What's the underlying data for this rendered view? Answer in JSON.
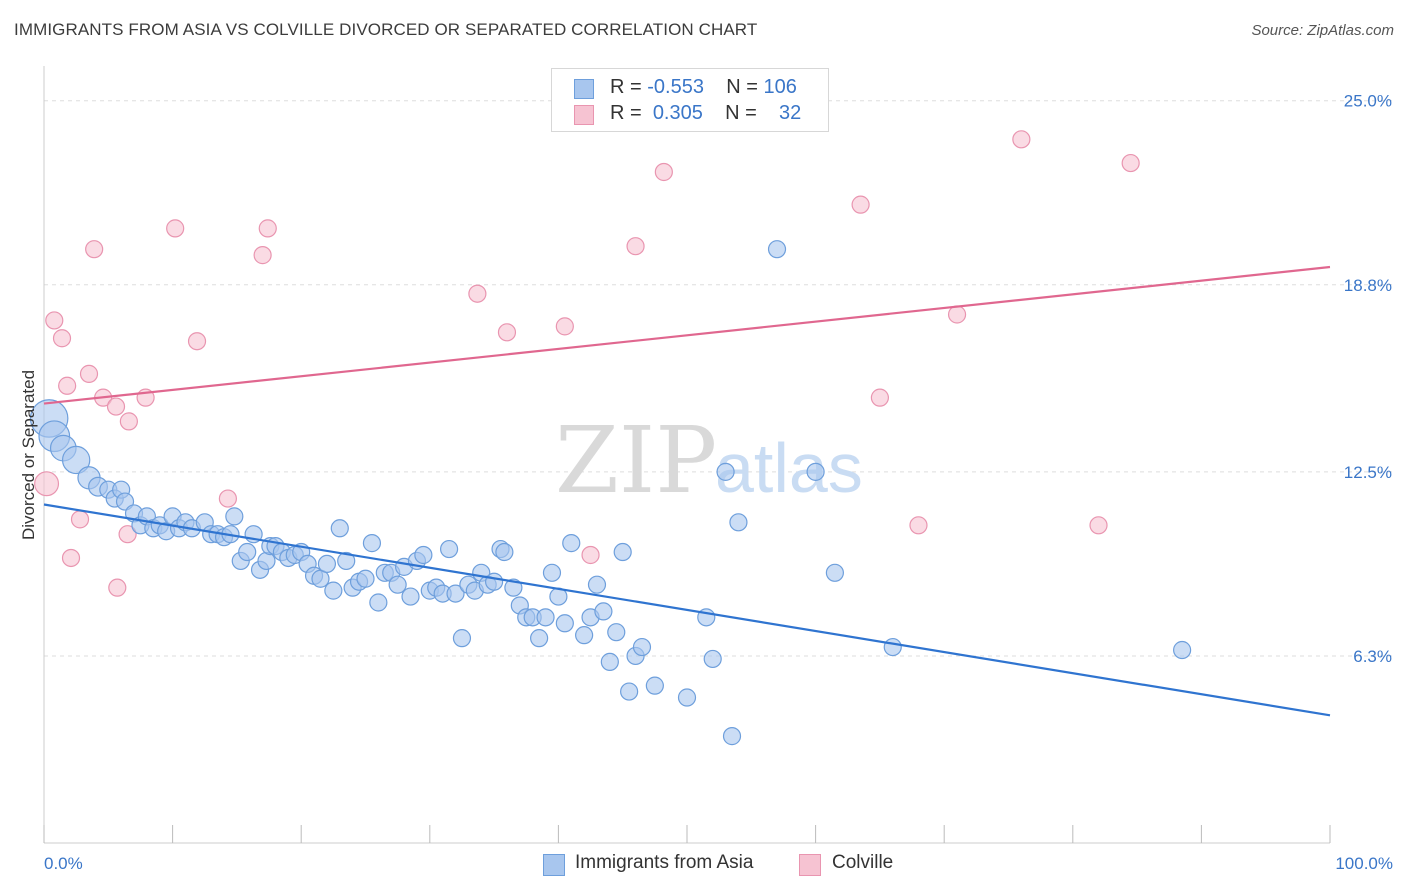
{
  "header": {
    "title": "IMMIGRANTS FROM ASIA VS COLVILLE DIVORCED OR SEPARATED CORRELATION CHART",
    "source": "Source: ZipAtlas.com"
  },
  "legend": {
    "rows": [
      {
        "r_label": "R =",
        "r_value": "-0.553",
        "n_label": "N =",
        "n_value": "106"
      },
      {
        "r_label": "R =",
        "r_value": "0.305",
        "n_label": "N =",
        "n_value": "32"
      }
    ]
  },
  "bottom_legend": {
    "series_a": "Immigrants from Asia",
    "series_b": "Colville"
  },
  "watermark": {
    "zip": "ZIP",
    "atlas": "atlas"
  },
  "colors": {
    "blue_fill": "#a8c6ee",
    "blue_stroke": "#6e9fdc",
    "blue_line": "#2f74d0",
    "pink_fill": "#f6c3d2",
    "pink_stroke": "#e995b0",
    "pink_line": "#e0678f",
    "axis_text": "#3a76c8",
    "grid": "#dddddd"
  },
  "chart_data": {
    "type": "scatter",
    "title": "IMMIGRANTS FROM ASIA VS COLVILLE DIVORCED OR SEPARATED CORRELATION CHART",
    "xlabel": "",
    "ylabel": "Divorced or Separated",
    "xlim": [
      0,
      100
    ],
    "ylim": [
      0,
      25.9
    ],
    "x_tick_labels": [
      "0.0%",
      "100.0%"
    ],
    "y_ticks": [
      6.3,
      12.5,
      18.8,
      25.0
    ],
    "y_tick_labels": [
      "6.3%",
      "12.5%",
      "18.8%",
      "25.0%"
    ],
    "grid": true,
    "series": [
      {
        "name": "Immigrants from Asia",
        "color": "#a8c6ee",
        "points": [
          [
            0.4,
            14.3,
            2.2
          ],
          [
            0.8,
            13.7,
            1.8
          ],
          [
            1.5,
            13.3,
            1.5
          ],
          [
            2.5,
            12.9,
            1.6
          ],
          [
            3.5,
            12.3,
            1.3
          ],
          [
            4.2,
            12.0,
            1.1
          ],
          [
            5.0,
            11.9,
            1.0
          ],
          [
            5.5,
            11.6,
            1.0
          ],
          [
            6.0,
            11.9,
            1.0
          ],
          [
            6.3,
            11.5,
            1.0
          ],
          [
            7.0,
            11.1,
            1.0
          ],
          [
            7.5,
            10.7,
            1.0
          ],
          [
            8.0,
            11.0,
            1.0
          ],
          [
            8.5,
            10.6,
            1.0
          ],
          [
            9.0,
            10.7,
            1.0
          ],
          [
            9.5,
            10.5,
            1.0
          ],
          [
            10.0,
            11.0,
            1.0
          ],
          [
            10.5,
            10.6,
            1.0
          ],
          [
            11.0,
            10.8,
            1.0
          ],
          [
            11.5,
            10.6,
            1.0
          ],
          [
            12.5,
            10.8,
            1.0
          ],
          [
            13.0,
            10.4,
            1.0
          ],
          [
            13.5,
            10.4,
            1.0
          ],
          [
            14.0,
            10.3,
            1.0
          ],
          [
            14.5,
            10.4,
            1.0
          ],
          [
            14.8,
            11.0,
            1.0
          ],
          [
            15.3,
            9.5,
            1.0
          ],
          [
            15.8,
            9.8,
            1.0
          ],
          [
            16.3,
            10.4,
            1.0
          ],
          [
            16.8,
            9.2,
            1.0
          ],
          [
            17.3,
            9.5,
            1.0
          ],
          [
            17.6,
            10.0,
            1.0
          ],
          [
            18.0,
            10.0,
            1.0
          ],
          [
            18.5,
            9.8,
            1.0
          ],
          [
            19.0,
            9.6,
            1.0
          ],
          [
            19.5,
            9.7,
            1.0
          ],
          [
            20.0,
            9.8,
            1.0
          ],
          [
            20.5,
            9.4,
            1.0
          ],
          [
            21.0,
            9.0,
            1.0
          ],
          [
            21.5,
            8.9,
            1.0
          ],
          [
            22.0,
            9.4,
            1.0
          ],
          [
            22.5,
            8.5,
            1.0
          ],
          [
            23.0,
            10.6,
            1.0
          ],
          [
            23.5,
            9.5,
            1.0
          ],
          [
            24.0,
            8.6,
            1.0
          ],
          [
            24.5,
            8.8,
            1.0
          ],
          [
            25.0,
            8.9,
            1.0
          ],
          [
            25.5,
            10.1,
            1.0
          ],
          [
            26.0,
            8.1,
            1.0
          ],
          [
            26.5,
            9.1,
            1.0
          ],
          [
            27.0,
            9.1,
            1.0
          ],
          [
            27.5,
            8.7,
            1.0
          ],
          [
            28.0,
            9.3,
            1.0
          ],
          [
            28.5,
            8.3,
            1.0
          ],
          [
            29.0,
            9.5,
            1.0
          ],
          [
            29.5,
            9.7,
            1.0
          ],
          [
            30.0,
            8.5,
            1.0
          ],
          [
            30.5,
            8.6,
            1.0
          ],
          [
            31.0,
            8.4,
            1.0
          ],
          [
            31.5,
            9.9,
            1.0
          ],
          [
            32.0,
            8.4,
            1.0
          ],
          [
            32.5,
            6.9,
            1.0
          ],
          [
            33.0,
            8.7,
            1.0
          ],
          [
            33.5,
            8.5,
            1.0
          ],
          [
            34.0,
            9.1,
            1.0
          ],
          [
            34.5,
            8.7,
            1.0
          ],
          [
            35.0,
            8.8,
            1.0
          ],
          [
            35.5,
            9.9,
            1.0
          ],
          [
            35.8,
            9.8,
            1.0
          ],
          [
            36.5,
            8.6,
            1.0
          ],
          [
            37.0,
            8.0,
            1.0
          ],
          [
            37.5,
            7.6,
            1.0
          ],
          [
            38.0,
            7.6,
            1.0
          ],
          [
            38.5,
            6.9,
            1.0
          ],
          [
            39.0,
            7.6,
            1.0
          ],
          [
            39.5,
            9.1,
            1.0
          ],
          [
            40.0,
            8.3,
            1.0
          ],
          [
            40.5,
            7.4,
            1.0
          ],
          [
            41.0,
            10.1,
            1.0
          ],
          [
            42.0,
            7.0,
            1.0
          ],
          [
            42.5,
            7.6,
            1.0
          ],
          [
            43.0,
            8.7,
            1.0
          ],
          [
            43.5,
            7.8,
            1.0
          ],
          [
            44.0,
            6.1,
            1.0
          ],
          [
            44.5,
            7.1,
            1.0
          ],
          [
            45.0,
            9.8,
            1.0
          ],
          [
            45.5,
            5.1,
            1.0
          ],
          [
            46.0,
            6.3,
            1.0
          ],
          [
            46.5,
            6.6,
            1.0
          ],
          [
            47.5,
            5.3,
            1.0
          ],
          [
            50.0,
            4.9,
            1.0
          ],
          [
            51.5,
            7.6,
            1.0
          ],
          [
            52.0,
            6.2,
            1.0
          ],
          [
            53.0,
            12.5,
            1.0
          ],
          [
            53.5,
            3.6,
            1.0
          ],
          [
            54.0,
            10.8,
            1.0
          ],
          [
            57.0,
            20.0,
            1.0
          ],
          [
            60.0,
            12.5,
            1.0
          ],
          [
            61.5,
            9.1,
            1.0
          ],
          [
            66.0,
            6.6,
            1.0
          ],
          [
            88.5,
            6.5,
            1.0
          ]
        ]
      },
      {
        "name": "Colville",
        "color": "#f6c3d2",
        "points": [
          [
            0.2,
            12.1,
            1.4
          ],
          [
            0.8,
            17.6,
            1.0
          ],
          [
            1.4,
            17.0,
            1.0
          ],
          [
            1.8,
            15.4,
            1.0
          ],
          [
            2.1,
            9.6,
            1.0
          ],
          [
            2.8,
            10.9,
            1.0
          ],
          [
            3.5,
            15.8,
            1.0
          ],
          [
            3.9,
            20.0,
            1.0
          ],
          [
            4.6,
            15.0,
            1.0
          ],
          [
            5.6,
            14.7,
            1.0
          ],
          [
            5.7,
            8.6,
            1.0
          ],
          [
            6.5,
            10.4,
            1.0
          ],
          [
            6.6,
            14.2,
            1.0
          ],
          [
            7.9,
            15.0,
            1.0
          ],
          [
            10.2,
            20.7,
            1.0
          ],
          [
            11.9,
            16.9,
            1.0
          ],
          [
            14.3,
            11.6,
            1.0
          ],
          [
            17.0,
            19.8,
            1.0
          ],
          [
            17.4,
            20.7,
            1.0
          ],
          [
            33.7,
            18.5,
            1.0
          ],
          [
            36.0,
            17.2,
            1.0
          ],
          [
            40.5,
            17.4,
            1.0
          ],
          [
            42.5,
            9.7,
            1.0
          ],
          [
            46.0,
            20.1,
            1.0
          ],
          [
            48.2,
            22.6,
            1.0
          ],
          [
            63.5,
            21.5,
            1.0
          ],
          [
            65.0,
            15.0,
            1.0
          ],
          [
            68.0,
            10.7,
            1.0
          ],
          [
            71.0,
            17.8,
            1.0
          ],
          [
            76.0,
            23.7,
            1.0
          ],
          [
            82.0,
            10.7,
            1.0
          ],
          [
            84.5,
            22.9,
            1.0
          ]
        ]
      }
    ],
    "trendlines": [
      {
        "series": "Immigrants from Asia",
        "x": [
          0,
          100
        ],
        "y": [
          11.4,
          4.3
        ]
      },
      {
        "series": "Colville",
        "x": [
          0,
          100
        ],
        "y": [
          14.8,
          19.4
        ]
      }
    ]
  }
}
